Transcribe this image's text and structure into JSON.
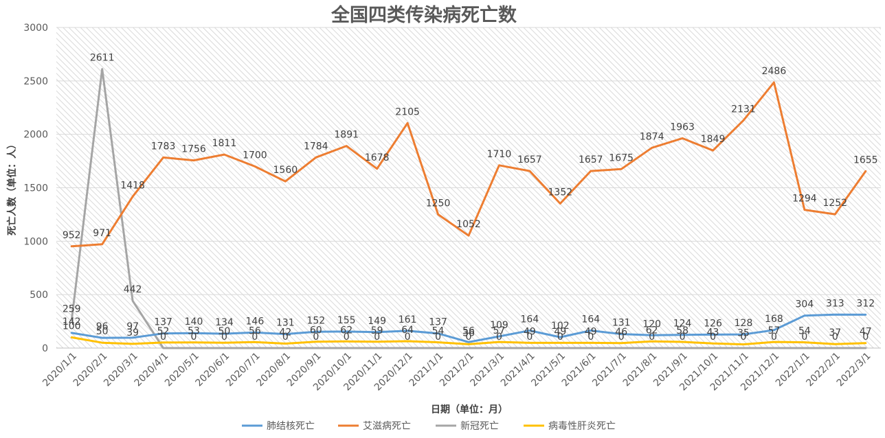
{
  "chart_data": {
    "type": "line",
    "title": "全国四类传染病死亡数",
    "xlabel": "日期（单位：月）",
    "ylabel": "死亡人数（单位：人）",
    "ylim": [
      0,
      3000
    ],
    "yticks": [
      "0",
      "500",
      "1000",
      "1500",
      "2000",
      "2500",
      "3000"
    ],
    "grid": true,
    "legend": "bottom",
    "categories": [
      "2020/1/1",
      "2020/2/1",
      "2020/3/1",
      "2020/4/1",
      "2020/5/1",
      "2020/6/1",
      "2020/7/1",
      "2020/8/1",
      "2020/9/1",
      "2020/10/1",
      "2020/11/1",
      "2020/12/1",
      "2021/1/1",
      "2021/2/1",
      "2021/3/1",
      "2021/4/1",
      "2021/5/1",
      "2021/6/1",
      "2021/7/1",
      "2021/8/1",
      "2021/9/1",
      "2021/10/1",
      "2021/11/1",
      "2021/12/1",
      "2022/1/1",
      "2022/2/1",
      "2022/3/1"
    ],
    "series": [
      {
        "name": "肺结核死亡",
        "color": "#5b9bd5",
        "values": [
          142,
          96,
          97,
          137,
          140,
          134,
          146,
          131,
          152,
          155,
          149,
          161,
          137,
          56,
          109,
          164,
          102,
          164,
          131,
          120,
          124,
          126,
          128,
          168,
          304,
          313,
          312
        ]
      },
      {
        "name": "艾滋病死亡",
        "color": "#ed7d31",
        "values": [
          952,
          971,
          1418,
          1783,
          1756,
          1811,
          1700,
          1560,
          1784,
          1891,
          1678,
          2105,
          1250,
          1052,
          1710,
          1657,
          1352,
          1657,
          1675,
          1874,
          1963,
          1849,
          2131,
          2486,
          1294,
          1252,
          1655
        ]
      },
      {
        "name": "新冠死亡",
        "color": "#a5a5a5",
        "values": [
          259,
          2611,
          442,
          0,
          0,
          0,
          0,
          0,
          0,
          0,
          0,
          0,
          0,
          0,
          0,
          0,
          0,
          0,
          0,
          0,
          0,
          0,
          0,
          0,
          0,
          0,
          0
        ]
      },
      {
        "name": "病毒性肝炎死亡",
        "color": "#ffc000",
        "values": [
          100,
          50,
          39,
          52,
          53,
          50,
          56,
          42,
          60,
          62,
          59,
          64,
          54,
          36,
          57,
          49,
          49,
          49,
          46,
          62,
          58,
          43,
          35,
          57,
          54,
          37,
          47
        ]
      }
    ]
  }
}
